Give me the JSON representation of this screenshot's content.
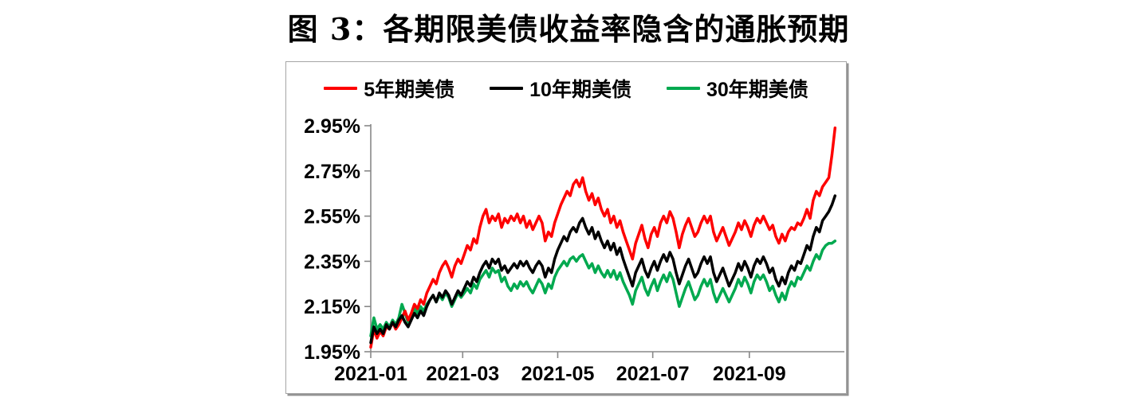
{
  "title": "图 3：各期限美债收益率隐含的通胀预期",
  "chart_data": {
    "type": "line",
    "title": "图 3：各期限美债收益率隐含的通胀预期",
    "xlabel": "",
    "ylabel": "",
    "grid": false,
    "legend_position": "top-center",
    "axis_color": "#888888",
    "ylim": [
      1.95,
      2.95
    ],
    "x_axis_unit": "days-from-2021-01-01",
    "xlim_days": [
      0,
      304
    ],
    "x_step_days": 2,
    "yticks": {
      "values": [
        2.95,
        2.75,
        2.55,
        2.35,
        2.15,
        1.95
      ],
      "labels": [
        "2.95%",
        "2.75%",
        "2.55%",
        "2.35%",
        "2.15%",
        "1.95%"
      ]
    },
    "xticks": {
      "days": [
        0,
        59,
        120,
        181,
        243
      ],
      "labels": [
        "2021-01",
        "2021-03",
        "2021-05",
        "2021-07",
        "2021-09"
      ]
    },
    "series": [
      {
        "name": "5年期美债",
        "color": "#FE0000",
        "values": [
          1.97,
          2.05,
          2.01,
          2.04,
          2.02,
          2.06,
          2.05,
          2.08,
          2.05,
          2.07,
          2.1,
          2.13,
          2.09,
          2.12,
          2.16,
          2.14,
          2.18,
          2.16,
          2.21,
          2.24,
          2.27,
          2.25,
          2.3,
          2.33,
          2.35,
          2.32,
          2.28,
          2.33,
          2.36,
          2.34,
          2.38,
          2.42,
          2.4,
          2.45,
          2.43,
          2.5,
          2.55,
          2.58,
          2.52,
          2.55,
          2.53,
          2.56,
          2.5,
          2.54,
          2.52,
          2.55,
          2.53,
          2.56,
          2.52,
          2.55,
          2.5,
          2.53,
          2.49,
          2.52,
          2.55,
          2.52,
          2.44,
          2.48,
          2.46,
          2.52,
          2.56,
          2.6,
          2.63,
          2.66,
          2.64,
          2.69,
          2.71,
          2.68,
          2.72,
          2.66,
          2.62,
          2.65,
          2.6,
          2.63,
          2.58,
          2.55,
          2.58,
          2.52,
          2.55,
          2.5,
          2.53,
          2.48,
          2.44,
          2.4,
          2.36,
          2.43,
          2.47,
          2.51,
          2.45,
          2.41,
          2.47,
          2.5,
          2.46,
          2.52,
          2.55,
          2.52,
          2.57,
          2.54,
          2.48,
          2.41,
          2.47,
          2.51,
          2.54,
          2.5,
          2.46,
          2.48,
          2.52,
          2.55,
          2.52,
          2.55,
          2.48,
          2.44,
          2.47,
          2.5,
          2.46,
          2.42,
          2.45,
          2.48,
          2.52,
          2.49,
          2.53,
          2.5,
          2.46,
          2.51,
          2.54,
          2.52,
          2.55,
          2.52,
          2.49,
          2.51,
          2.46,
          2.43,
          2.47,
          2.44,
          2.48,
          2.5,
          2.49,
          2.52,
          2.51,
          2.54,
          2.58,
          2.54,
          2.62,
          2.66,
          2.64,
          2.68,
          2.7,
          2.72,
          2.82,
          2.94
        ]
      },
      {
        "name": "10年期美债",
        "color": "#000000",
        "values": [
          1.99,
          2.06,
          2.03,
          2.05,
          2.03,
          2.07,
          2.05,
          2.08,
          2.06,
          2.09,
          2.11,
          2.08,
          2.06,
          2.09,
          2.12,
          2.1,
          2.13,
          2.11,
          2.15,
          2.18,
          2.2,
          2.17,
          2.21,
          2.19,
          2.22,
          2.2,
          2.16,
          2.19,
          2.22,
          2.2,
          2.23,
          2.26,
          2.24,
          2.28,
          2.26,
          2.3,
          2.33,
          2.35,
          2.32,
          2.36,
          2.34,
          2.36,
          2.31,
          2.33,
          2.3,
          2.32,
          2.34,
          2.32,
          2.35,
          2.33,
          2.35,
          2.32,
          2.3,
          2.33,
          2.35,
          2.33,
          2.28,
          2.32,
          2.3,
          2.36,
          2.4,
          2.43,
          2.46,
          2.44,
          2.48,
          2.5,
          2.48,
          2.52,
          2.54,
          2.5,
          2.47,
          2.5,
          2.45,
          2.48,
          2.44,
          2.41,
          2.44,
          2.4,
          2.43,
          2.38,
          2.41,
          2.36,
          2.32,
          2.28,
          2.24,
          2.3,
          2.33,
          2.36,
          2.31,
          2.28,
          2.32,
          2.35,
          2.31,
          2.35,
          2.38,
          2.35,
          2.39,
          2.36,
          2.3,
          2.25,
          2.29,
          2.33,
          2.36,
          2.32,
          2.28,
          2.3,
          2.34,
          2.37,
          2.34,
          2.37,
          2.3,
          2.26,
          2.29,
          2.32,
          2.28,
          2.24,
          2.27,
          2.3,
          2.34,
          2.31,
          2.35,
          2.32,
          2.28,
          2.33,
          2.36,
          2.34,
          2.37,
          2.34,
          2.3,
          2.32,
          2.27,
          2.24,
          2.28,
          2.25,
          2.3,
          2.33,
          2.31,
          2.35,
          2.34,
          2.38,
          2.42,
          2.4,
          2.46,
          2.5,
          2.48,
          2.53,
          2.55,
          2.57,
          2.6,
          2.64
        ]
      },
      {
        "name": "30年期美债",
        "color": "#00A94F",
        "values": [
          2.02,
          2.1,
          2.05,
          2.07,
          2.05,
          2.08,
          2.06,
          2.09,
          2.07,
          2.1,
          2.16,
          2.12,
          2.08,
          2.11,
          2.14,
          2.12,
          2.15,
          2.13,
          2.16,
          2.18,
          2.2,
          2.17,
          2.2,
          2.18,
          2.21,
          2.19,
          2.15,
          2.18,
          2.21,
          2.19,
          2.21,
          2.23,
          2.21,
          2.25,
          2.23,
          2.27,
          2.29,
          2.31,
          2.28,
          2.32,
          2.3,
          2.31,
          2.26,
          2.28,
          2.24,
          2.22,
          2.25,
          2.23,
          2.26,
          2.24,
          2.26,
          2.23,
          2.21,
          2.24,
          2.27,
          2.25,
          2.21,
          2.25,
          2.23,
          2.28,
          2.31,
          2.33,
          2.35,
          2.33,
          2.36,
          2.37,
          2.35,
          2.37,
          2.38,
          2.35,
          2.32,
          2.34,
          2.3,
          2.33,
          2.3,
          2.28,
          2.31,
          2.28,
          2.31,
          2.27,
          2.3,
          2.26,
          2.23,
          2.2,
          2.16,
          2.22,
          2.25,
          2.28,
          2.23,
          2.2,
          2.24,
          2.27,
          2.22,
          2.26,
          2.29,
          2.26,
          2.3,
          2.27,
          2.21,
          2.15,
          2.19,
          2.23,
          2.26,
          2.22,
          2.18,
          2.2,
          2.24,
          2.27,
          2.24,
          2.27,
          2.21,
          2.17,
          2.2,
          2.23,
          2.2,
          2.17,
          2.2,
          2.23,
          2.27,
          2.24,
          2.28,
          2.25,
          2.21,
          2.26,
          2.29,
          2.27,
          2.29,
          2.26,
          2.22,
          2.24,
          2.2,
          2.17,
          2.21,
          2.18,
          2.23,
          2.26,
          2.24,
          2.28,
          2.27,
          2.3,
          2.33,
          2.31,
          2.35,
          2.38,
          2.36,
          2.4,
          2.42,
          2.43,
          2.43,
          2.44
        ]
      }
    ]
  }
}
